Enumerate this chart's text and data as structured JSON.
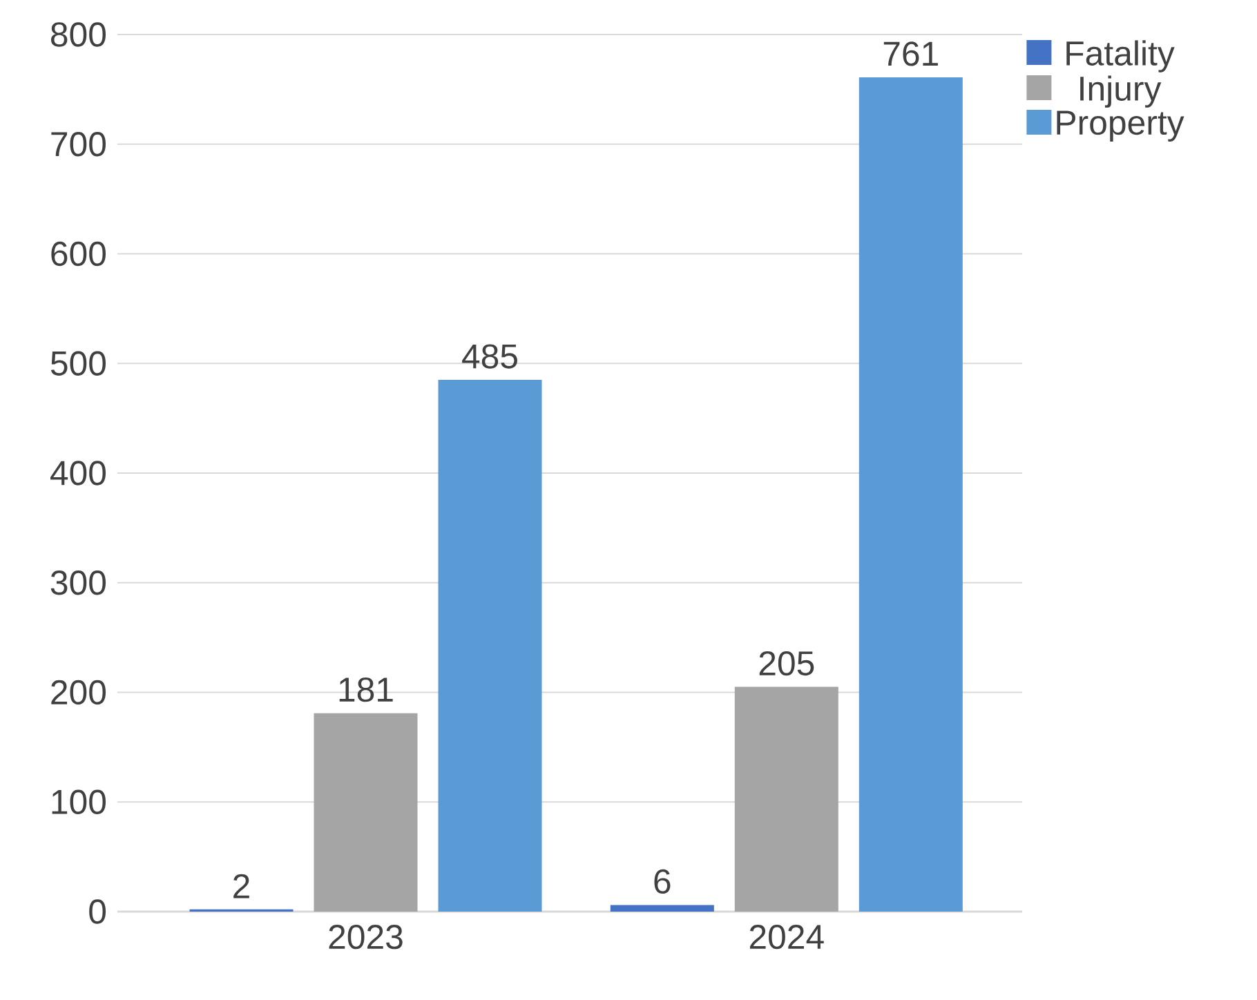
{
  "chart_data": {
    "type": "bar",
    "categories": [
      "2023",
      "2024"
    ],
    "series": [
      {
        "name": "Fatality",
        "color": "#4472c4",
        "values": [
          2,
          6
        ]
      },
      {
        "name": "Injury",
        "color": "#a5a5a5",
        "values": [
          181,
          205
        ]
      },
      {
        "name": "Property",
        "color": "#5b9bd5",
        "values": [
          485,
          761
        ]
      }
    ],
    "ylim": [
      0,
      800
    ],
    "yticks": [
      0,
      100,
      200,
      300,
      400,
      500,
      600,
      700,
      800
    ],
    "grid": "y",
    "legend": "top right",
    "data_labels": true
  }
}
